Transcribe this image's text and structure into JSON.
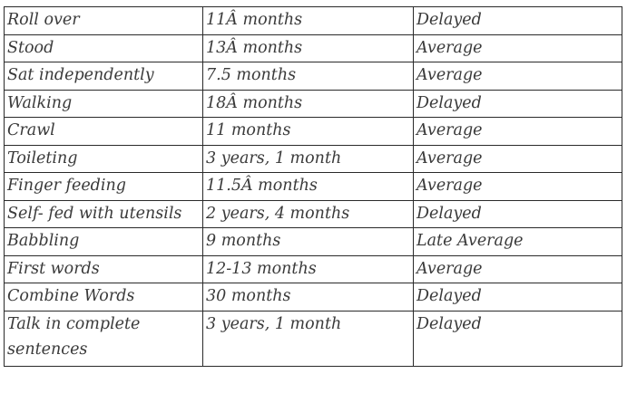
{
  "rows": [
    {
      "milestone": "Roll over",
      "age": "11Â  months",
      "status": "Delayed"
    },
    {
      "milestone": "Stood",
      "age": "13Â  months",
      "status": "Average"
    },
    {
      "milestone": "Sat independently",
      "age": "7.5 months",
      "status": "Average"
    },
    {
      "milestone": "Walking",
      "age": "18Â  months",
      "status": "Delayed"
    },
    {
      "milestone": "Crawl",
      "age": "11 months",
      "status": "Average"
    },
    {
      "milestone": "Toileting",
      "age": "3 years, 1 month",
      "status": "Average"
    },
    {
      "milestone": "Finger feeding",
      "age": "11.5Â  months",
      "status": "Average"
    },
    {
      "milestone": "Self- fed with utensils",
      "age": "2 years, 4 months",
      "status": "Delayed"
    },
    {
      "milestone": "Babbling",
      "age": "9 months",
      "status": "Late Average"
    },
    {
      "milestone": "First words",
      "age": "12-13 months",
      "status": "Average"
    },
    {
      "milestone": "Combine Words",
      "age": "30 months",
      "status": "Delayed"
    },
    {
      "milestone": "Talk in complete sentences",
      "age": "3 years, 1 month",
      "status": "Delayed"
    }
  ]
}
